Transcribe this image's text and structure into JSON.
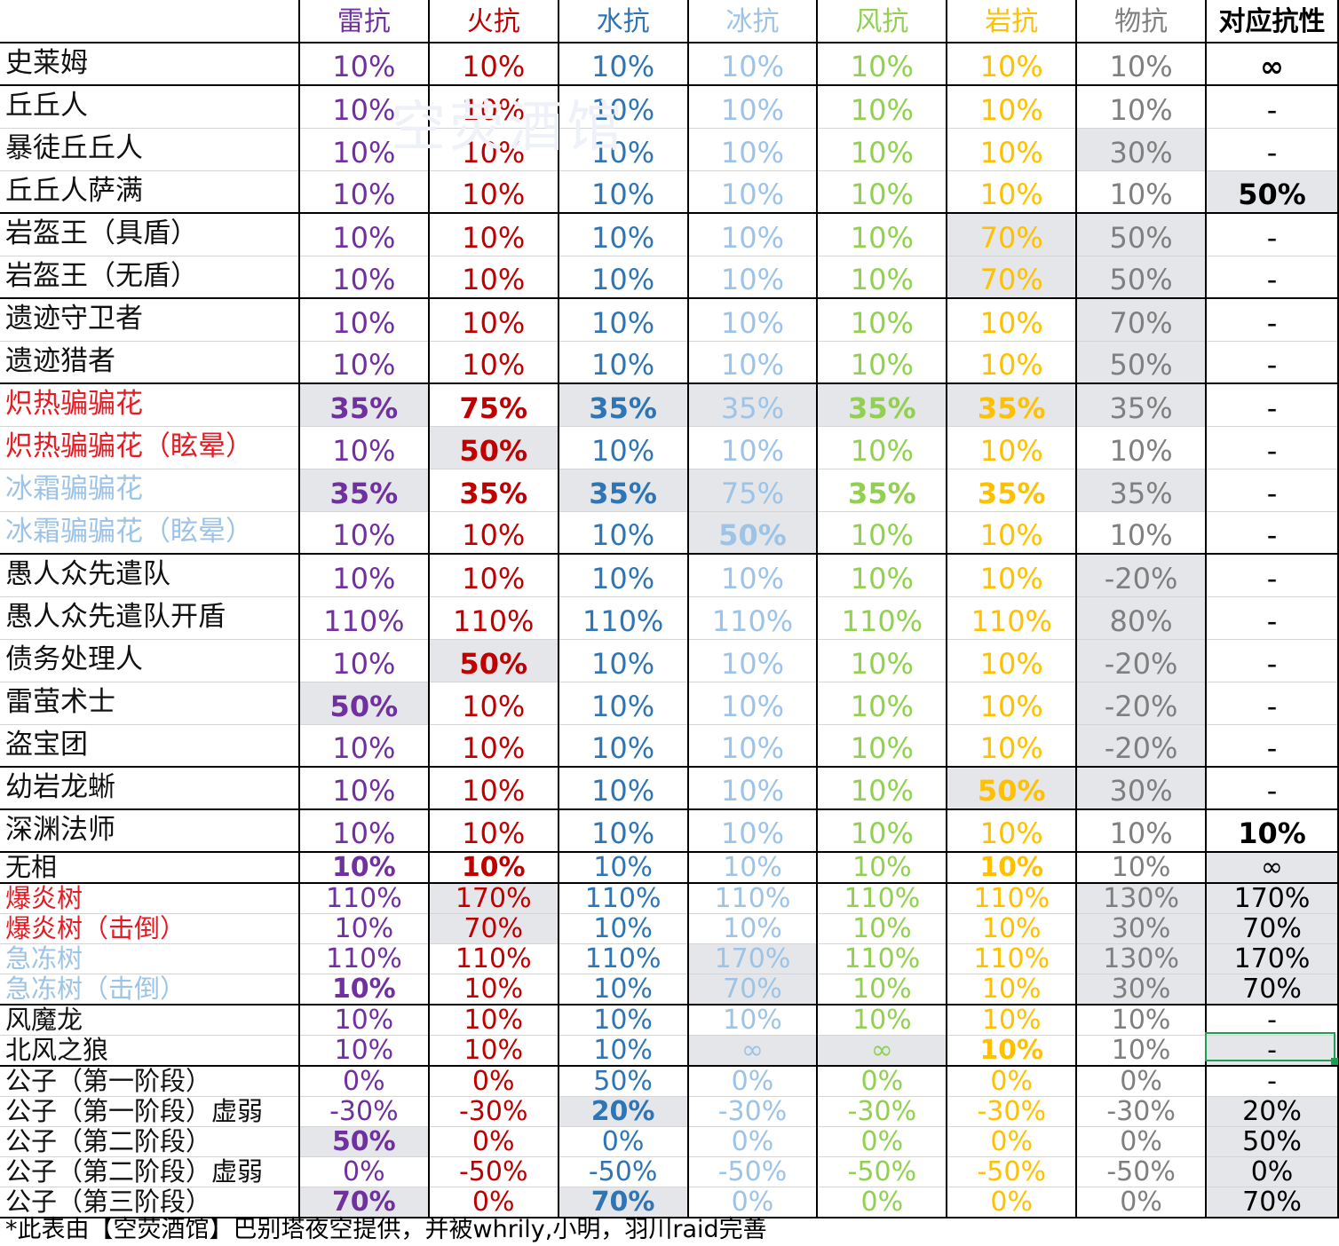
{
  "headers": [
    "",
    "雷抗",
    "火抗",
    "水抗",
    "冰抗",
    "风抗",
    "岩抗",
    "物抗",
    "对应抗性"
  ],
  "colors": {
    "names": {
      "red": "#e51b23",
      "ice": "#9dc3e6",
      "black": "#111111"
    },
    "columns": [
      "#7030a0",
      "#c00000",
      "#2e75b6",
      "#9dc3e6",
      "#92d050",
      "#ffc000",
      "#7f7f7f",
      "#000000"
    ],
    "shade": "#e4e6ea",
    "grid_light": "#d4d4d4",
    "grid_dark": "#000000",
    "selection": "#1e9e52"
  },
  "rows": [
    {
      "name": "史莱姆",
      "nc": "black",
      "vals": [
        "10%",
        "10%",
        "10%",
        "10%",
        "10%",
        "10%",
        "10%",
        "∞"
      ],
      "hl": [],
      "bold": [
        7
      ]
    },
    {
      "name": "丘丘人",
      "nc": "black",
      "vals": [
        "10%",
        "10%",
        "10%",
        "10%",
        "10%",
        "10%",
        "10%",
        "-"
      ],
      "hl": [],
      "bold": []
    },
    {
      "name": "暴徒丘丘人",
      "nc": "black",
      "vals": [
        "10%",
        "10%",
        "10%",
        "10%",
        "10%",
        "10%",
        "30%",
        "-"
      ],
      "hl": [
        6
      ],
      "bold": []
    },
    {
      "name": "丘丘人萨满",
      "nc": "black",
      "vals": [
        "10%",
        "10%",
        "10%",
        "10%",
        "10%",
        "10%",
        "10%",
        "50%"
      ],
      "hl": [
        7
      ],
      "bold": [
        7
      ]
    },
    {
      "name": "岩盔王（具盾）",
      "nc": "black",
      "vals": [
        "10%",
        "10%",
        "10%",
        "10%",
        "10%",
        "70%",
        "50%",
        "-"
      ],
      "hl": [
        5,
        6
      ],
      "bold": []
    },
    {
      "name": "岩盔王（无盾）",
      "nc": "black",
      "vals": [
        "10%",
        "10%",
        "10%",
        "10%",
        "10%",
        "70%",
        "50%",
        "-"
      ],
      "hl": [
        5,
        6
      ],
      "bold": []
    },
    {
      "name": "遗迹守卫者",
      "nc": "black",
      "vals": [
        "10%",
        "10%",
        "10%",
        "10%",
        "10%",
        "10%",
        "70%",
        "-"
      ],
      "hl": [
        6
      ],
      "bold": []
    },
    {
      "name": "遗迹猎者",
      "nc": "black",
      "vals": [
        "10%",
        "10%",
        "10%",
        "10%",
        "10%",
        "10%",
        "50%",
        "-"
      ],
      "hl": [
        6
      ],
      "bold": []
    },
    {
      "name": "炽热骗骗花",
      "nc": "red",
      "vals": [
        "35%",
        "75%",
        "35%",
        "35%",
        "35%",
        "35%",
        "35%",
        "-"
      ],
      "hl": [
        0,
        2,
        3,
        4,
        5,
        6
      ],
      "bold": [
        0,
        1,
        2,
        4,
        5
      ]
    },
    {
      "name": "炽热骗骗花（眩晕）",
      "nc": "red",
      "vals": [
        "10%",
        "50%",
        "10%",
        "10%",
        "10%",
        "10%",
        "10%",
        "-"
      ],
      "hl": [
        1
      ],
      "bold": [
        1
      ]
    },
    {
      "name": "冰霜骗骗花",
      "nc": "ice",
      "vals": [
        "35%",
        "35%",
        "35%",
        "75%",
        "35%",
        "35%",
        "35%",
        "-"
      ],
      "hl": [
        0,
        2,
        3,
        6
      ],
      "bold": [
        0,
        1,
        2,
        4,
        5
      ]
    },
    {
      "name": "冰霜骗骗花（眩晕）",
      "nc": "ice",
      "vals": [
        "10%",
        "10%",
        "10%",
        "50%",
        "10%",
        "10%",
        "10%",
        "-"
      ],
      "hl": [
        3
      ],
      "bold": [
        3
      ]
    },
    {
      "name": "愚人众先遣队",
      "nc": "black",
      "vals": [
        "10%",
        "10%",
        "10%",
        "10%",
        "10%",
        "10%",
        "-20%",
        "-"
      ],
      "hl": [
        6
      ],
      "bold": []
    },
    {
      "name": "愚人众先遣队开盾",
      "nc": "black",
      "vals": [
        "110%",
        "110%",
        "110%",
        "110%",
        "110%",
        "110%",
        "80%",
        "-"
      ],
      "hl": [
        6
      ],
      "bold": []
    },
    {
      "name": "债务处理人",
      "nc": "black",
      "vals": [
        "10%",
        "50%",
        "10%",
        "10%",
        "10%",
        "10%",
        "-20%",
        "-"
      ],
      "hl": [
        1,
        6
      ],
      "bold": [
        1
      ]
    },
    {
      "name": "雷萤术士",
      "nc": "black",
      "vals": [
        "50%",
        "10%",
        "10%",
        "10%",
        "10%",
        "10%",
        "-20%",
        "-"
      ],
      "hl": [
        0,
        6
      ],
      "bold": [
        0
      ]
    },
    {
      "name": "盗宝团",
      "nc": "black",
      "vals": [
        "10%",
        "10%",
        "10%",
        "10%",
        "10%",
        "10%",
        "-20%",
        "-"
      ],
      "hl": [
        6
      ],
      "bold": []
    },
    {
      "name": "幼岩龙蜥",
      "nc": "black",
      "vals": [
        "10%",
        "10%",
        "10%",
        "10%",
        "10%",
        "50%",
        "30%",
        "-"
      ],
      "hl": [
        5,
        6
      ],
      "bold": [
        5
      ]
    },
    {
      "name": "深渊法师",
      "nc": "black",
      "vals": [
        "10%",
        "10%",
        "10%",
        "10%",
        "10%",
        "10%",
        "10%",
        "10%"
      ],
      "hl": [],
      "bold": [
        7
      ]
    },
    {
      "name": "无相",
      "nc": "black",
      "vals": [
        "10%",
        "10%",
        "10%",
        "10%",
        "10%",
        "10%",
        "10%",
        "∞"
      ],
      "hl": [
        7
      ],
      "bold": [
        0,
        1,
        5
      ]
    },
    {
      "name": "爆炎树",
      "nc": "red",
      "vals": [
        "110%",
        "170%",
        "110%",
        "110%",
        "110%",
        "110%",
        "130%",
        "170%"
      ],
      "hl": [
        1,
        6,
        7
      ],
      "bold": []
    },
    {
      "name": "爆炎树（击倒）",
      "nc": "red",
      "vals": [
        "10%",
        "70%",
        "10%",
        "10%",
        "10%",
        "10%",
        "30%",
        "70%"
      ],
      "hl": [
        1,
        6,
        7
      ],
      "bold": []
    },
    {
      "name": "急冻树",
      "nc": "ice",
      "vals": [
        "110%",
        "110%",
        "110%",
        "170%",
        "110%",
        "110%",
        "130%",
        "170%"
      ],
      "hl": [
        3,
        6,
        7
      ],
      "bold": []
    },
    {
      "name": "急冻树（击倒）",
      "nc": "ice",
      "vals": [
        "10%",
        "10%",
        "10%",
        "70%",
        "10%",
        "10%",
        "30%",
        "70%"
      ],
      "hl": [
        3,
        6,
        7
      ],
      "bold": [
        0
      ]
    },
    {
      "name": "风魔龙",
      "nc": "black",
      "vals": [
        "10%",
        "10%",
        "10%",
        "10%",
        "10%",
        "10%",
        "10%",
        "-"
      ],
      "hl": [],
      "bold": []
    },
    {
      "name": "北风之狼",
      "nc": "black",
      "vals": [
        "10%",
        "10%",
        "10%",
        "∞",
        "∞",
        "10%",
        "10%",
        "-"
      ],
      "hl": [
        3,
        4,
        7
      ],
      "bold": [
        5
      ]
    },
    {
      "name": "公子（第一阶段）",
      "nc": "black",
      "vals": [
        "0%",
        "0%",
        "50%",
        "0%",
        "0%",
        "0%",
        "0%",
        "-"
      ],
      "hl": [],
      "bold": []
    },
    {
      "name": "公子（第一阶段）虚弱",
      "nc": "black",
      "vals": [
        "-30%",
        "-30%",
        "20%",
        "-30%",
        "-30%",
        "-30%",
        "-30%",
        "20%"
      ],
      "hl": [
        2,
        7
      ],
      "bold": [
        2
      ]
    },
    {
      "name": "公子（第二阶段）",
      "nc": "black",
      "vals": [
        "50%",
        "0%",
        "0%",
        "0%",
        "0%",
        "0%",
        "0%",
        "50%"
      ],
      "hl": [
        0,
        7
      ],
      "bold": [
        0
      ]
    },
    {
      "name": "公子（第二阶段）虚弱",
      "nc": "black",
      "vals": [
        "0%",
        "-50%",
        "-50%",
        "-50%",
        "-50%",
        "-50%",
        "-50%",
        "0%"
      ],
      "hl": [
        7
      ],
      "bold": []
    },
    {
      "name": "公子（第三阶段）",
      "nc": "black",
      "vals": [
        "70%",
        "0%",
        "70%",
        "0%",
        "0%",
        "0%",
        "0%",
        "70%"
      ],
      "hl": [
        0,
        2,
        7
      ],
      "bold": [
        0,
        2
      ]
    }
  ],
  "footnote": "*此表由【空荧酒馆】巴别塔夜空提供，并被whrily,小明，羽川raid完善",
  "watermark": "空荧酒馆"
}
